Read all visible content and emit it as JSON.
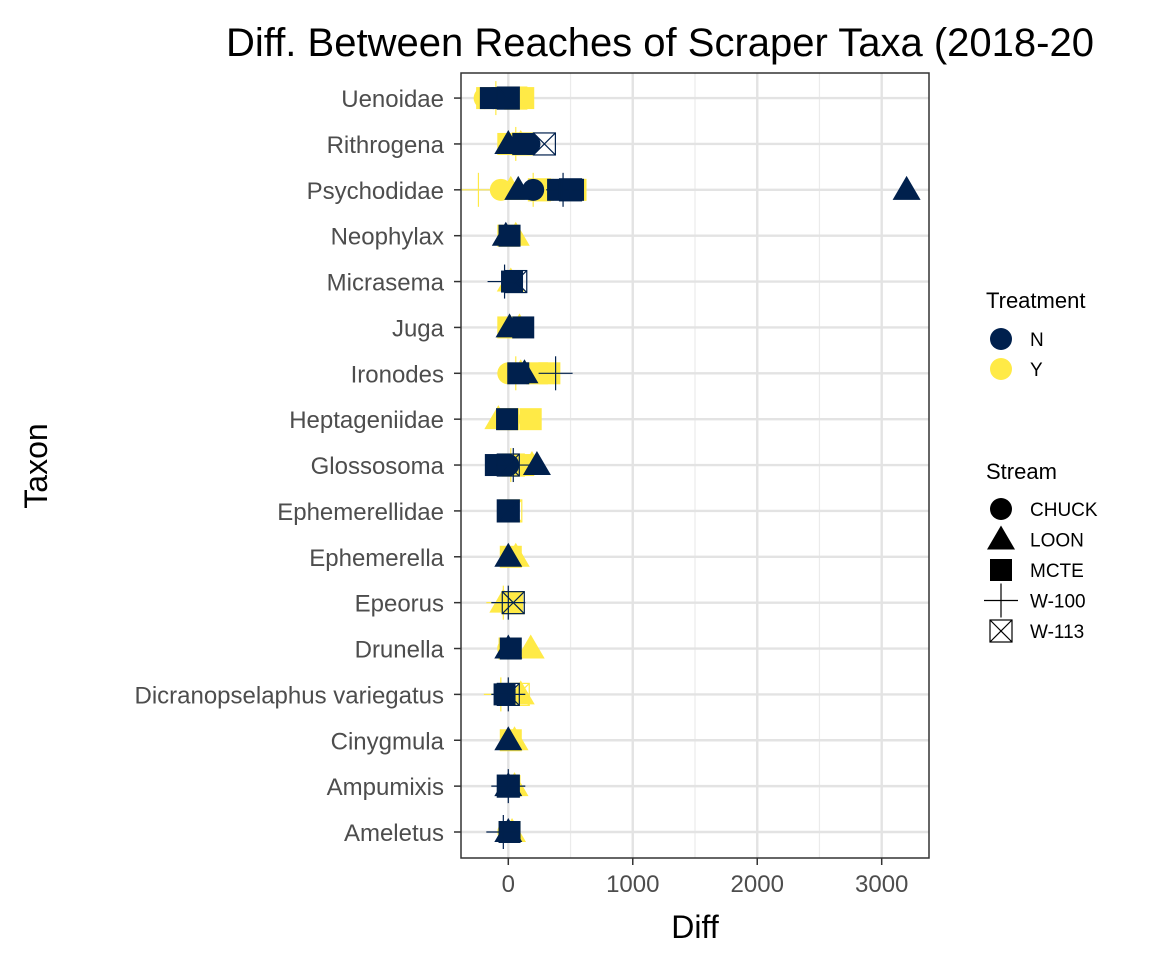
{
  "chart_data": {
    "type": "scatter",
    "title": "Diff. Between Reaches of Scraper Taxa (2018-20",
    "xlabel": "Diff",
    "ylabel": "Taxon",
    "xlim": [
      -380,
      3380
    ],
    "x_ticks": [
      0,
      1000,
      2000,
      3000
    ],
    "x_tick_labels": [
      "0",
      "1000",
      "2000",
      "3000"
    ],
    "grid": true,
    "legend_placement": "right",
    "categories": [
      "Ameletus",
      "Ampumixis",
      "Cinygmula",
      "Dicranopselaphus variegatus",
      "Drunella",
      "Epeorus",
      "Ephemerella",
      "Ephemerellidae",
      "Glossosoma",
      "Heptageniidae",
      "Ironodes",
      "Juga",
      "Micrasema",
      "Neophylax",
      "Psychodidae",
      "Rithrogena",
      "Uenoidae"
    ],
    "legends": {
      "treatment": {
        "title": "Treatment",
        "entries": [
          {
            "label": "N",
            "color": "#00204D"
          },
          {
            "label": "Y",
            "color": "#FFEA46"
          }
        ]
      },
      "stream": {
        "title": "Stream",
        "entries": [
          {
            "label": "CHUCK",
            "shape": "circle"
          },
          {
            "label": "LOON",
            "shape": "triangle"
          },
          {
            "label": "MCTE",
            "shape": "square"
          },
          {
            "label": "W-100",
            "shape": "plus"
          },
          {
            "label": "W-113",
            "shape": "boxx"
          }
        ]
      }
    },
    "series": [
      {
        "treatment": "Y",
        "stream": "MCTE",
        "points": [
          [
            "Ameletus",
            10
          ],
          [
            "Cinygmula",
            20
          ],
          [
            "Drunella",
            10
          ],
          [
            "Ephemerella",
            20
          ],
          [
            "Heptageniidae",
            0
          ],
          [
            "Heptageniidae",
            180
          ],
          [
            "Ironodes",
            330
          ],
          [
            "Ironodes",
            230
          ],
          [
            "Juga",
            0
          ],
          [
            "Neophylax",
            0
          ],
          [
            "Psychodidae",
            540
          ],
          [
            "Psychodidae",
            280
          ],
          [
            "Rithrogena",
            0
          ],
          [
            "Uenoidae",
            -170
          ],
          [
            "Uenoidae",
            120
          ],
          [
            "Glossosoma",
            120
          ],
          [
            "Epeorus",
            30
          ],
          [
            "Ampumixis",
            10
          ]
        ]
      },
      {
        "treatment": "Y",
        "stream": "CHUCK",
        "points": [
          [
            "Drunella",
            0
          ],
          [
            "Ironodes",
            0
          ],
          [
            "Psychodidae",
            -60
          ],
          [
            "Rithrogena",
            80
          ],
          [
            "Uenoidae",
            -190
          ],
          [
            "Uenoidae",
            20
          ],
          [
            "Glossosoma",
            30
          ],
          [
            "Ampumixis",
            0
          ],
          [
            "Juga",
            20
          ],
          [
            "Ameletus",
            0
          ],
          [
            "Heptageniidae",
            10
          ],
          [
            "Epeorus",
            10
          ]
        ]
      },
      {
        "treatment": "Y",
        "stream": "LOON",
        "points": [
          [
            "Drunella",
            180
          ],
          [
            "Glossosoma",
            190
          ],
          [
            "Dicranopselaphus variegatus",
            100
          ],
          [
            "Heptageniidae",
            -80
          ],
          [
            "Juga",
            90
          ],
          [
            "Neophylax",
            60
          ],
          [
            "Ironodes",
            100
          ],
          [
            "Psychodidae",
            20
          ],
          [
            "Micrasema",
            20
          ],
          [
            "Cinygmula",
            50
          ],
          [
            "Ampumixis",
            50
          ],
          [
            "Ameletus",
            30
          ],
          [
            "Ephemerella",
            60
          ],
          [
            "Epeorus",
            -40
          ],
          [
            "Rithrogena",
            100
          ]
        ]
      },
      {
        "treatment": "Y",
        "stream": "W-100",
        "points": [
          [
            "Psychodidae",
            -240
          ],
          [
            "Psychodidae",
            200
          ],
          [
            "Ironodes",
            60
          ],
          [
            "Uenoidae",
            -100
          ],
          [
            "Rithrogena",
            60
          ],
          [
            "Glossosoma",
            20
          ],
          [
            "Dicranopselaphus variegatus",
            -60
          ],
          [
            "Epeorus",
            -40
          ]
        ]
      },
      {
        "treatment": "Y",
        "stream": "W-113",
        "points": [
          [
            "Dicranopselaphus variegatus",
            80
          ],
          [
            "Epeorus",
            40
          ],
          [
            "Uenoidae",
            60
          ],
          [
            "Rithrogena",
            120
          ],
          [
            "Psychodidae",
            250
          ],
          [
            "Glossosoma",
            40
          ],
          [
            "Ephemerellidae",
            20
          ]
        ]
      },
      {
        "treatment": "N",
        "stream": "LOON",
        "points": [
          [
            "Psychodidae",
            3200
          ],
          [
            "Psychodidae",
            80
          ],
          [
            "Rithrogena",
            0
          ],
          [
            "Glossosoma",
            230
          ],
          [
            "Cinygmula",
            0
          ],
          [
            "Ephemerella",
            0
          ],
          [
            "Ampumixis",
            0
          ],
          [
            "Ameletus",
            0
          ],
          [
            "Neophylax",
            -20
          ],
          [
            "Juga",
            10
          ],
          [
            "Ironodes",
            130
          ],
          [
            "Drunella",
            0
          ]
        ]
      },
      {
        "treatment": "N",
        "stream": "MCTE",
        "points": [
          [
            "Psychodidae",
            520
          ],
          [
            "Psychodidae",
            400
          ],
          [
            "Uenoidae",
            -140
          ],
          [
            "Uenoidae",
            0
          ],
          [
            "Rithrogena",
            120
          ],
          [
            "Glossosoma",
            -100
          ],
          [
            "Juga",
            120
          ],
          [
            "Micrasema",
            30
          ],
          [
            "Heptageniidae",
            -10
          ],
          [
            "Ironodes",
            80
          ],
          [
            "Drunella",
            20
          ],
          [
            "Ameletus",
            10
          ],
          [
            "Ampumixis",
            0
          ],
          [
            "Neophylax",
            10
          ],
          [
            "Ephemerellidae",
            0
          ],
          [
            "Dicranopselaphus variegatus",
            -30
          ]
        ]
      },
      {
        "treatment": "N",
        "stream": "CHUCK",
        "points": [
          [
            "Psychodidae",
            200
          ],
          [
            "Rithrogena",
            170
          ],
          [
            "Ampumixis",
            0
          ],
          [
            "Glossosoma",
            0
          ],
          [
            "Ephemerellidae",
            0
          ],
          [
            "Uenoidae",
            -120
          ]
        ]
      },
      {
        "treatment": "N",
        "stream": "W-100",
        "points": [
          [
            "Psychodidae",
            440
          ],
          [
            "Ironodes",
            380
          ],
          [
            "Ampumixis",
            0
          ],
          [
            "Ameletus",
            -40
          ],
          [
            "Glossosoma",
            40
          ],
          [
            "Micrasema",
            -30
          ],
          [
            "Dicranopselaphus variegatus",
            0
          ],
          [
            "Epeorus",
            0
          ]
        ]
      },
      {
        "treatment": "N",
        "stream": "W-113",
        "points": [
          [
            "Rithrogena",
            290
          ],
          [
            "Psychodidae",
            500
          ],
          [
            "Uenoidae",
            0
          ],
          [
            "Glossosoma",
            0
          ],
          [
            "Ephemerellidae",
            0
          ],
          [
            "Micrasema",
            60
          ],
          [
            "Dicranopselaphus variegatus",
            0
          ],
          [
            "Epeorus",
            40
          ],
          [
            "Ampumixis",
            0
          ]
        ]
      }
    ]
  }
}
